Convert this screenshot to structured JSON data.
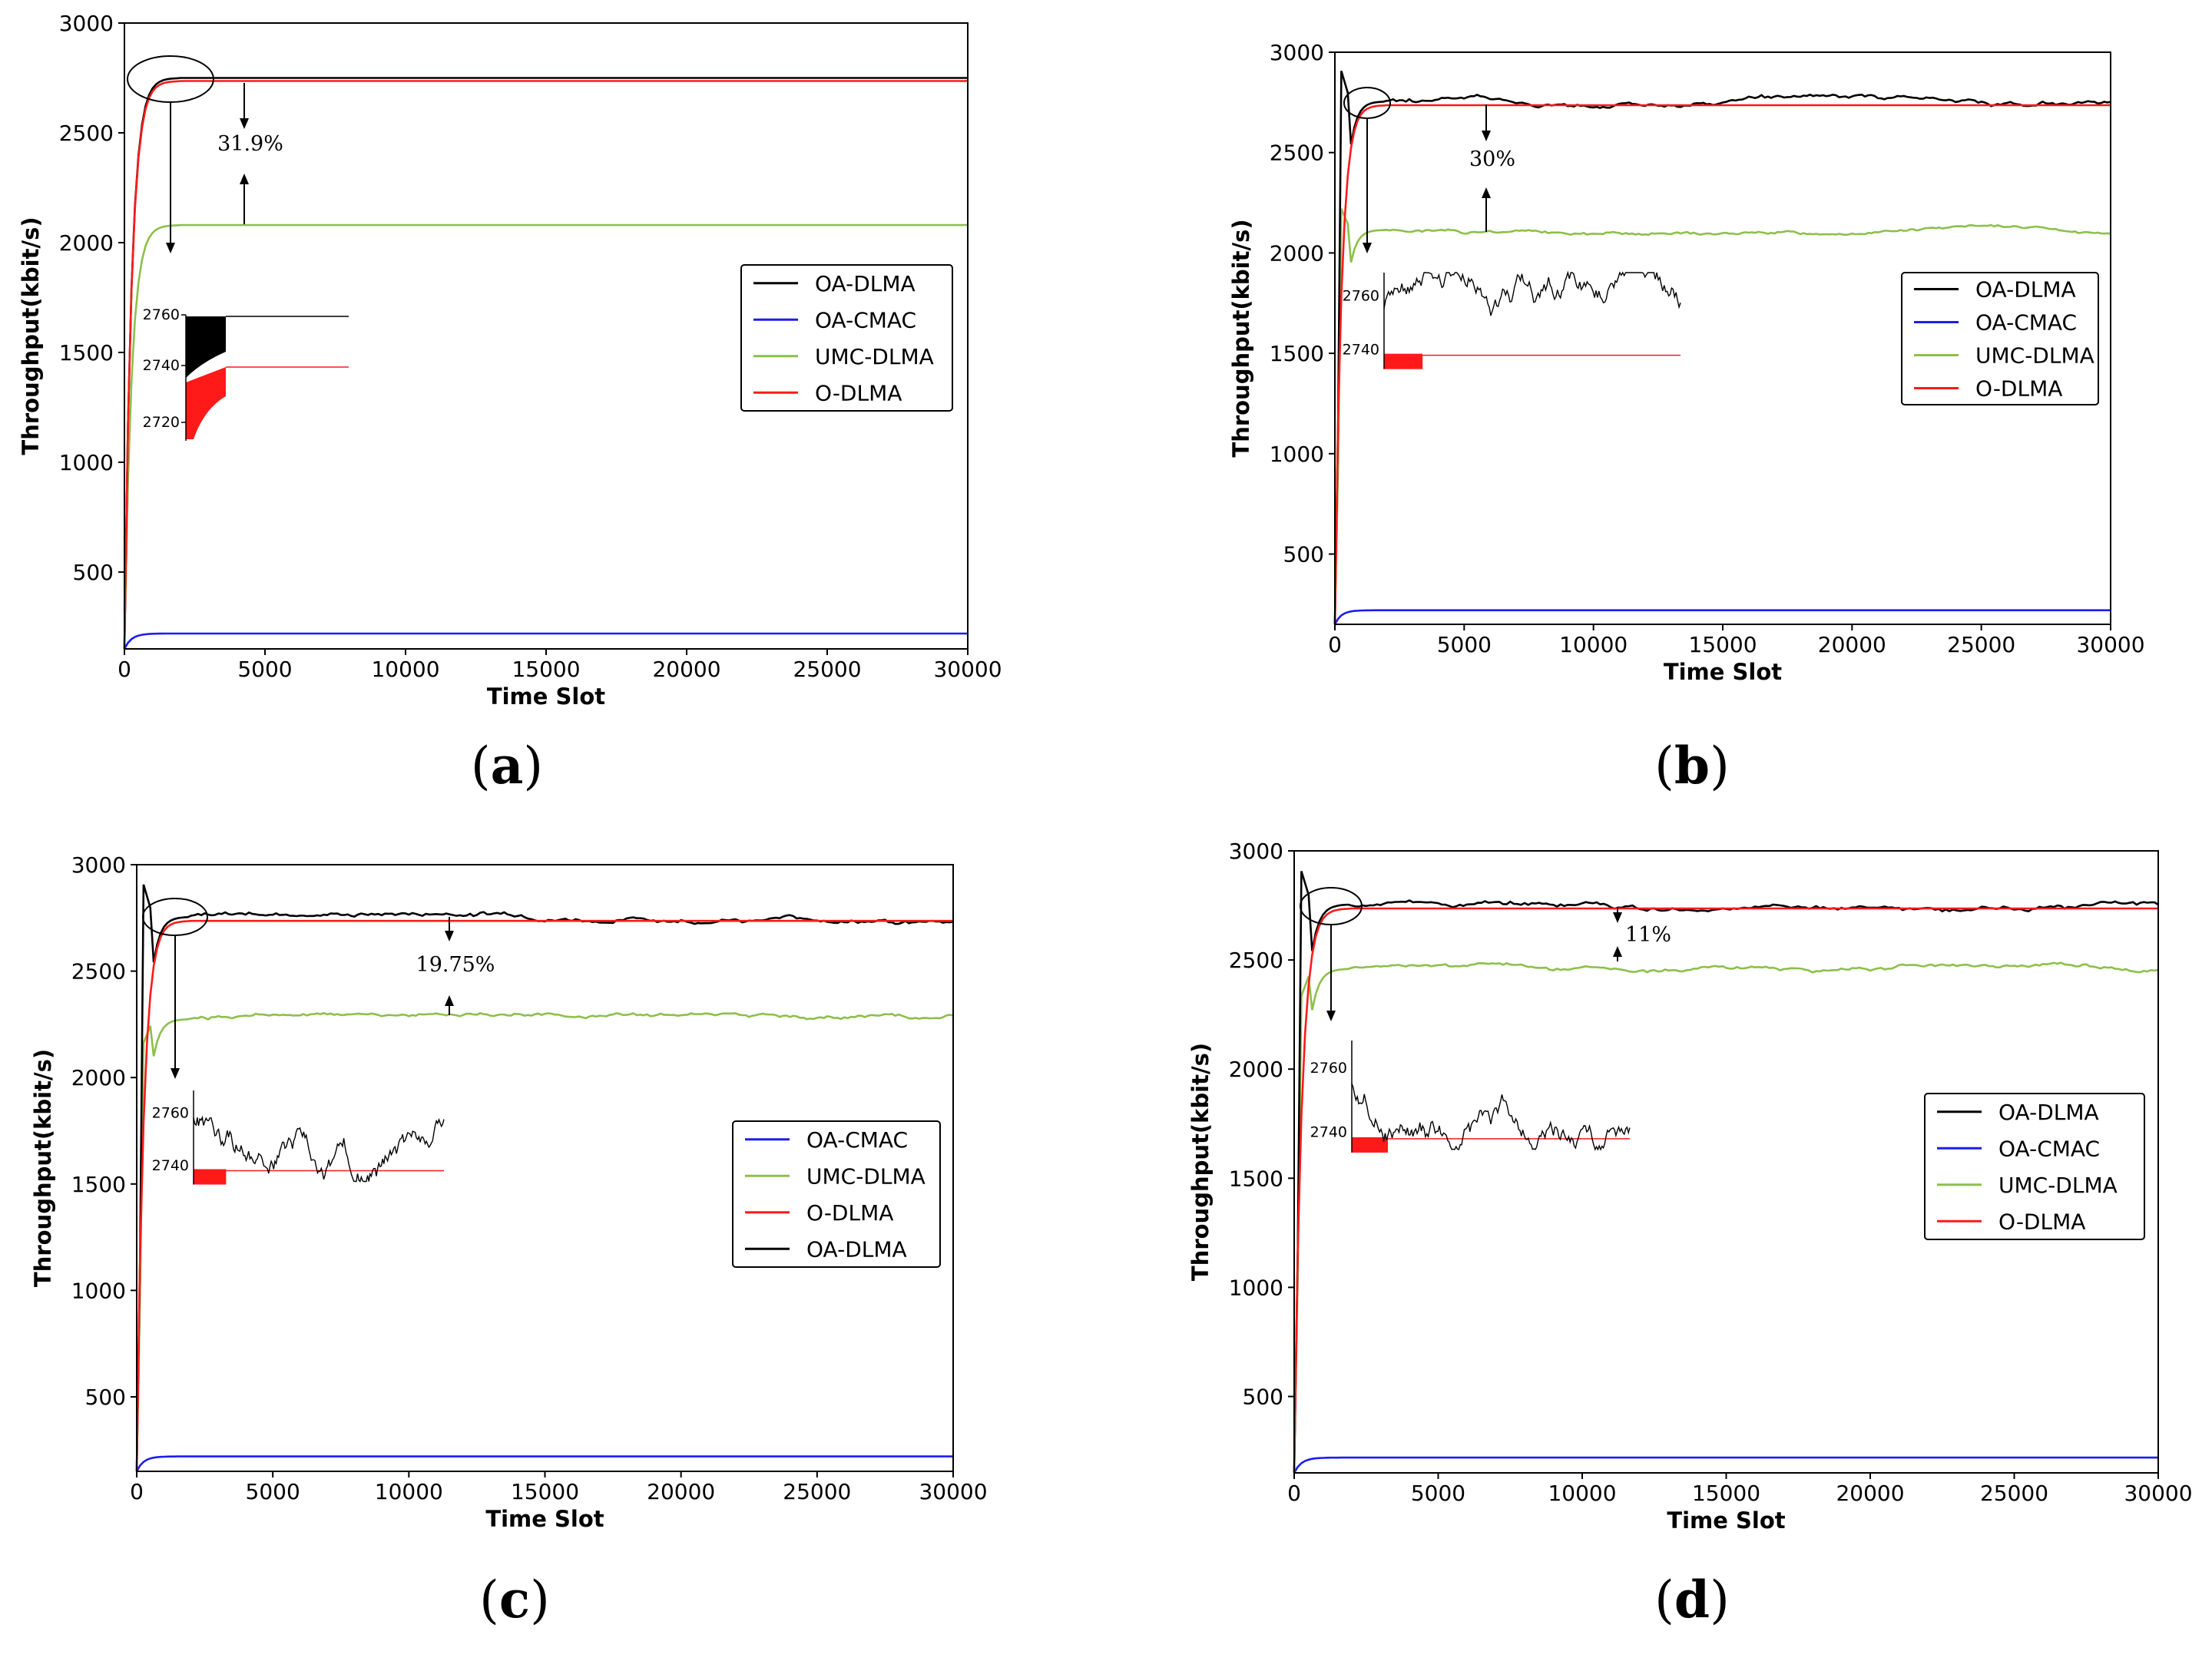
{
  "colors": {
    "OA-DLMA": "#000000",
    "OA-CMAC": "#1c1cf0",
    "UMC-DLMA": "#8cc04a",
    "O-DLMA": "#ff1a1a"
  },
  "chart_data": [
    {
      "id": "a",
      "type": "line",
      "panel_label": "a",
      "xlabel": "Time Slot",
      "ylabel": "Throughput(kbit/s)",
      "xlim": [
        0,
        30000
      ],
      "ylim": [
        150,
        3000
      ],
      "xticks": [
        0,
        5000,
        10000,
        15000,
        20000,
        25000,
        30000
      ],
      "yticks": [
        500,
        1000,
        1500,
        2000,
        2500,
        3000
      ],
      "legend_position": "center-right",
      "legend": [
        "OA-DLMA",
        "OA-CMAC",
        "UMC-DLMA",
        "O-DLMA"
      ],
      "series": [
        {
          "name": "OA-DLMA",
          "steady": 2750,
          "fluct": 0,
          "start": 150,
          "overshoot": 0
        },
        {
          "name": "O-DLMA",
          "steady": 2736,
          "fluct": 0,
          "start": 150,
          "overshoot": 0
        },
        {
          "name": "UMC-DLMA",
          "steady": 2080,
          "fluct": 0,
          "start": 150,
          "overshoot": 0
        },
        {
          "name": "OA-CMAC",
          "steady": 220,
          "fluct": 0,
          "start": 150,
          "overshoot": 0
        }
      ],
      "annotation": "31.9%",
      "inset_ticks": [
        "2760",
        "2740",
        "2720"
      ]
    },
    {
      "id": "b",
      "type": "line",
      "panel_label": "b",
      "xlabel": "Time Slot",
      "ylabel": "Throughput(kbit/s)",
      "xlim": [
        0,
        30000
      ],
      "ylim": [
        150,
        3000
      ],
      "xticks": [
        0,
        5000,
        10000,
        15000,
        20000,
        25000,
        30000
      ],
      "yticks": [
        500,
        1000,
        1500,
        2000,
        2500,
        3000
      ],
      "legend_position": "center-right",
      "legend": [
        "OA-DLMA",
        "OA-CMAC",
        "UMC-DLMA",
        "O-DLMA"
      ],
      "series": [
        {
          "name": "OA-DLMA",
          "steady": 2755,
          "fluct": 30,
          "start": 150,
          "overshoot": 2950
        },
        {
          "name": "O-DLMA",
          "steady": 2736,
          "fluct": 0,
          "start": 150,
          "overshoot": 0
        },
        {
          "name": "UMC-DLMA",
          "steady": 2115,
          "fluct": 22,
          "start": 150,
          "overshoot": 2250
        },
        {
          "name": "OA-CMAC",
          "steady": 220,
          "fluct": 0,
          "start": 150,
          "overshoot": 0
        }
      ],
      "annotation": "30%",
      "inset_ticks": [
        "2760",
        "2740"
      ]
    },
    {
      "id": "c",
      "type": "line",
      "panel_label": "c",
      "xlabel": "Time Slot",
      "ylabel": "Throughput(kbit/s)",
      "xlim": [
        0,
        30000
      ],
      "ylim": [
        150,
        3000
      ],
      "xticks": [
        0,
        5000,
        10000,
        15000,
        20000,
        25000,
        30000
      ],
      "yticks": [
        500,
        1000,
        1500,
        2000,
        2500,
        3000
      ],
      "legend_position": "center-right",
      "legend": [
        "OA-CMAC",
        "UMC-DLMA",
        "O-DLMA",
        "OA-DLMA"
      ],
      "series": [
        {
          "name": "OA-DLMA",
          "steady": 2755,
          "fluct": 30,
          "start": 150,
          "overshoot": 2950
        },
        {
          "name": "O-DLMA",
          "steady": 2736,
          "fluct": 0,
          "start": 150,
          "overshoot": 0
        },
        {
          "name": "UMC-DLMA",
          "steady": 2275,
          "fluct": 25,
          "start": 150,
          "overshoot": 2130
        },
        {
          "name": "OA-CMAC",
          "steady": 220,
          "fluct": 0,
          "start": 150,
          "overshoot": 0
        }
      ],
      "annotation": "19.75%",
      "inset_ticks": [
        "2760",
        "2740"
      ]
    },
    {
      "id": "d",
      "type": "line",
      "panel_label": "d",
      "xlabel": "Time Slot",
      "ylabel": "Throughput(kbit/s)",
      "xlim": [
        0,
        30000
      ],
      "ylim": [
        150,
        3000
      ],
      "xticks": [
        0,
        5000,
        10000,
        15000,
        20000,
        25000,
        30000
      ],
      "yticks": [
        500,
        1000,
        1500,
        2000,
        2500,
        3000
      ],
      "legend_position": "center-right",
      "legend": [
        "OA-DLMA",
        "OA-CMAC",
        "UMC-DLMA",
        "O-DLMA"
      ],
      "series": [
        {
          "name": "OA-DLMA",
          "steady": 2755,
          "fluct": 30,
          "start": 150,
          "overshoot": 2950
        },
        {
          "name": "O-DLMA",
          "steady": 2736,
          "fluct": 0,
          "start": 150,
          "overshoot": 0
        },
        {
          "name": "UMC-DLMA",
          "steady": 2460,
          "fluct": 25,
          "start": 150,
          "overshoot": 2300
        },
        {
          "name": "OA-CMAC",
          "steady": 220,
          "fluct": 0,
          "start": 150,
          "overshoot": 0
        }
      ],
      "annotation": "11%",
      "inset_ticks": [
        "2760",
        "2740"
      ]
    }
  ]
}
